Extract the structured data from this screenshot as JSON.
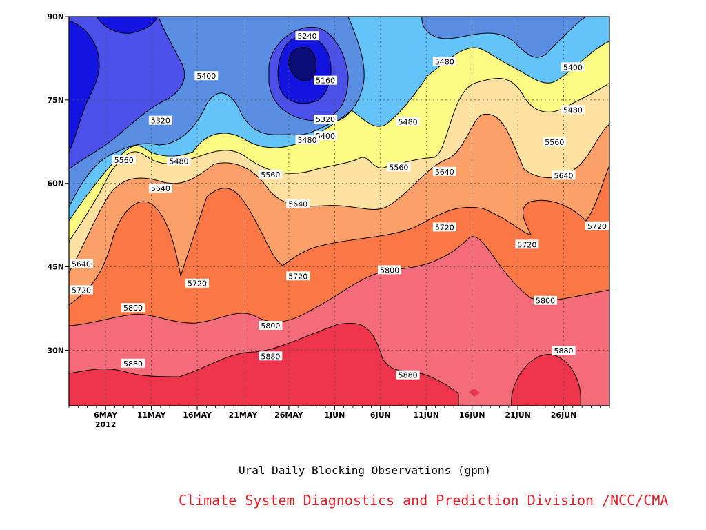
{
  "chart_data": {
    "type": "heatmap",
    "caption": "Ural Daily Blocking Observations (gpm)",
    "credit": "Climate System Diagnostics and Prediction Division /NCC/CMA",
    "credit_color": "#e8202a",
    "y_axis": {
      "ticks": [
        "30N",
        "45N",
        "60N",
        "75N",
        "90N"
      ],
      "values": [
        30,
        45,
        60,
        75,
        90
      ],
      "range": [
        20,
        90
      ]
    },
    "x_axis": {
      "ticks": [
        "6MAY",
        "11MAY",
        "16MAY",
        "21MAY",
        "26MAY",
        "1JUN",
        "6JUN",
        "11JUN",
        "16JUN",
        "21JUN",
        "26JUN"
      ],
      "year_label": "2012",
      "range": [
        "2012-05-02",
        "2012-06-30"
      ]
    },
    "contour_levels": [
      5160,
      5240,
      5320,
      5400,
      5480,
      5560,
      5640,
      5720,
      5800,
      5880
    ],
    "fill_colors": [
      "#0c0c78",
      "#1414e0",
      "#4b50e8",
      "#5a8ee2",
      "#64c3f8",
      "#fbfa82",
      "#fde1a0",
      "#fca06a",
      "#fb7846",
      "#f46c7a",
      "#ee344a"
    ],
    "grid": true,
    "contour_labels": [
      {
        "date": "2012-05-28",
        "lat": 86.5,
        "value": "5240"
      },
      {
        "date": "2012-05-30",
        "lat": 78.5,
        "value": "5160"
      },
      {
        "date": "2012-05-30",
        "lat": 71.5,
        "value": "5320"
      },
      {
        "date": "2012-05-30",
        "lat": 68.5,
        "value": "5400"
      },
      {
        "date": "2012-05-28",
        "lat": 67.8,
        "value": "5480"
      },
      {
        "date": "2012-05-17",
        "lat": 79.3,
        "value": "5400"
      },
      {
        "date": "2012-05-12",
        "lat": 71.3,
        "value": "5320"
      },
      {
        "date": "2012-05-08",
        "lat": 64.2,
        "value": "5560"
      },
      {
        "date": "2012-05-14",
        "lat": 64.0,
        "value": "5480"
      },
      {
        "date": "2012-05-12",
        "lat": 59.1,
        "value": "5640"
      },
      {
        "date": "2012-05-24",
        "lat": 61.6,
        "value": "5560"
      },
      {
        "date": "2012-05-27",
        "lat": 56.3,
        "value": "5640"
      },
      {
        "date": "2012-06-08",
        "lat": 71.1,
        "value": "5480"
      },
      {
        "date": "2012-06-07",
        "lat": 62.9,
        "value": "5560"
      },
      {
        "date": "2012-06-12",
        "lat": 81.9,
        "value": "5480"
      },
      {
        "date": "2012-06-12",
        "lat": 62.1,
        "value": "5640"
      },
      {
        "date": "2012-06-12",
        "lat": 52.1,
        "value": "5720"
      },
      {
        "date": "2012-06-26",
        "lat": 80.9,
        "value": "5400"
      },
      {
        "date": "2012-06-26",
        "lat": 73.2,
        "value": "5480"
      },
      {
        "date": "2012-06-24",
        "lat": 67.4,
        "value": "5560"
      },
      {
        "date": "2012-06-25",
        "lat": 61.4,
        "value": "5640"
      },
      {
        "date": "2012-06-29",
        "lat": 52.3,
        "value": "5720"
      },
      {
        "date": "2012-06-21",
        "lat": 49.0,
        "value": "5720"
      },
      {
        "date": "2012-05-02",
        "lat": 45.5,
        "value": "5640"
      },
      {
        "date": "2012-05-02",
        "lat": 40.8,
        "value": "5720"
      },
      {
        "date": "2012-05-16",
        "lat": 42.0,
        "value": "5720"
      },
      {
        "date": "2012-05-27",
        "lat": 43.3,
        "value": "5720"
      },
      {
        "date": "2012-06-06",
        "lat": 44.4,
        "value": "5800"
      },
      {
        "date": "2012-05-09",
        "lat": 37.6,
        "value": "5800"
      },
      {
        "date": "2012-05-24",
        "lat": 34.4,
        "value": "5800"
      },
      {
        "date": "2012-06-23",
        "lat": 38.9,
        "value": "5800"
      },
      {
        "date": "2012-05-09",
        "lat": 27.6,
        "value": "5880"
      },
      {
        "date": "2012-05-24",
        "lat": 28.9,
        "value": "5880"
      },
      {
        "date": "2012-06-08",
        "lat": 25.5,
        "value": "5880"
      },
      {
        "date": "2012-06-25",
        "lat": 29.9,
        "value": "5880"
      }
    ]
  }
}
